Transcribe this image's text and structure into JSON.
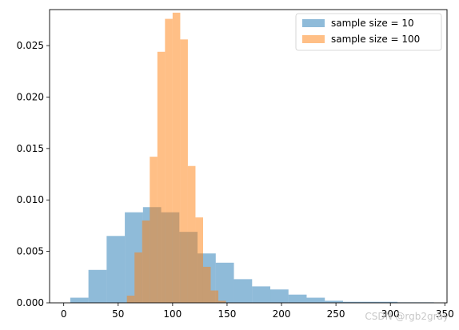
{
  "chart_data": {
    "type": "bar",
    "subtype": "overlapping-histogram",
    "title": "",
    "xlabel": "",
    "ylabel": "",
    "xlim": [
      -13,
      352
    ],
    "ylim": [
      0,
      0.0285
    ],
    "x_ticks": [
      0,
      50,
      100,
      150,
      200,
      250,
      300,
      350
    ],
    "y_ticks": [
      0.0,
      0.005,
      0.01,
      0.015,
      0.02,
      0.025
    ],
    "y_tick_labels": [
      "0.000",
      "0.005",
      "0.010",
      "0.015",
      "0.020",
      "0.025"
    ],
    "grid": false,
    "legend_position": "top-right",
    "series": [
      {
        "name": "sample size = 10",
        "color": "#1f77b4",
        "alpha": 0.5,
        "bin_edges": [
          6,
          22.7,
          39.4,
          56.1,
          72.8,
          89.5,
          106.2,
          122.9,
          139.6,
          156.3,
          173,
          189.7,
          206.4,
          223.1,
          239.8,
          256.5,
          273.2,
          289.9,
          306.6,
          323.3,
          340
        ],
        "values": [
          0.0005,
          0.0032,
          0.0065,
          0.0088,
          0.0093,
          0.0088,
          0.0069,
          0.0048,
          0.0039,
          0.0023,
          0.0016,
          0.0013,
          0.0008,
          0.0005,
          0.0002,
          0.0001,
          0.0001,
          0.0001,
          5e-05,
          5e-05
        ]
      },
      {
        "name": "sample size = 100",
        "color": "#ff7f0e",
        "alpha": 0.5,
        "bin_edges": [
          58,
          65,
          72,
          79,
          86,
          93,
          100,
          107,
          114,
          121,
          128,
          135,
          142,
          149
        ],
        "values": [
          0.0007,
          0.0049,
          0.008,
          0.0142,
          0.0244,
          0.0276,
          0.0282,
          0.0256,
          0.0133,
          0.0083,
          0.0035,
          0.0012,
          0.0002
        ]
      }
    ]
  },
  "watermark_text": "CSDN @rgb2gray"
}
